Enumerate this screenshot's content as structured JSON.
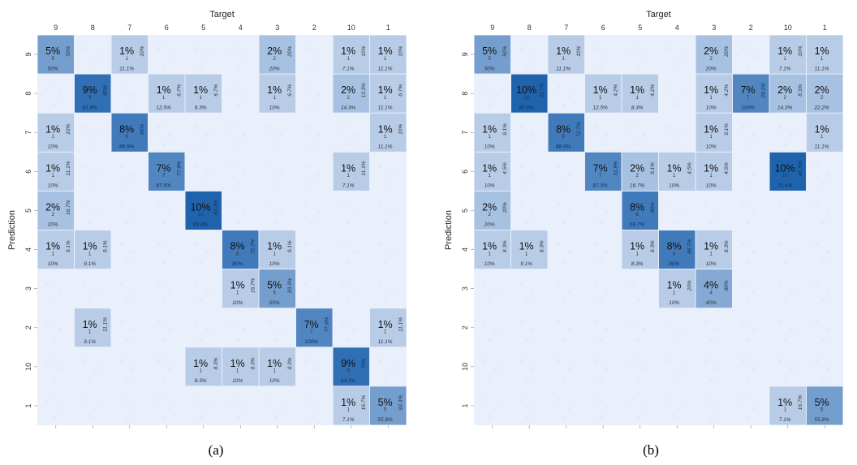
{
  "chart_data": [
    {
      "type": "heatmap",
      "caption": "(a)",
      "xlabel": "Target",
      "ylabel": "Prediction",
      "x_categories": [
        "9",
        "8",
        "7",
        "6",
        "5",
        "4",
        "3",
        "2",
        "10",
        "1"
      ],
      "y_categories": [
        "9",
        "8",
        "7",
        "6",
        "5",
        "4",
        "3",
        "2",
        "10",
        "1"
      ],
      "color_scale": {
        "low": "#e9effb",
        "high": "#1f63ad"
      },
      "cells": [
        {
          "prediction": "9",
          "target": "9",
          "percent": "5%",
          "count": "5",
          "col_pct": "50%",
          "row_pct": "50%"
        },
        {
          "prediction": "9",
          "target": "7",
          "percent": "1%",
          "count": "1",
          "col_pct": "11.1%",
          "row_pct": "10%"
        },
        {
          "prediction": "9",
          "target": "3",
          "percent": "2%",
          "count": "2",
          "col_pct": "20%",
          "row_pct": "20%"
        },
        {
          "prediction": "9",
          "target": "10",
          "percent": "1%",
          "count": "1",
          "col_pct": "7.1%",
          "row_pct": "10%"
        },
        {
          "prediction": "9",
          "target": "1",
          "percent": "1%",
          "count": "1",
          "col_pct": "11.1%",
          "row_pct": "10%"
        },
        {
          "prediction": "8",
          "target": "8",
          "percent": "9%",
          "count": "9",
          "col_pct": "81.8%",
          "row_pct": "60%"
        },
        {
          "prediction": "8",
          "target": "6",
          "percent": "1%",
          "count": "1",
          "col_pct": "12.5%",
          "row_pct": "6.7%"
        },
        {
          "prediction": "8",
          "target": "5",
          "percent": "1%",
          "count": "1",
          "col_pct": "8.3%",
          "row_pct": "6.7%"
        },
        {
          "prediction": "8",
          "target": "3",
          "percent": "1%",
          "count": "1",
          "col_pct": "10%",
          "row_pct": "6.7%"
        },
        {
          "prediction": "8",
          "target": "10",
          "percent": "2%",
          "count": "2",
          "col_pct": "14.3%",
          "row_pct": "13.3%"
        },
        {
          "prediction": "8",
          "target": "1",
          "percent": "1%",
          "count": "1",
          "col_pct": "11.1%",
          "row_pct": "6.7%"
        },
        {
          "prediction": "7",
          "target": "9",
          "percent": "1%",
          "count": "1",
          "col_pct": "10%",
          "row_pct": "10%"
        },
        {
          "prediction": "7",
          "target": "7",
          "percent": "8%",
          "count": "8",
          "col_pct": "88.9%",
          "row_pct": "80%"
        },
        {
          "prediction": "7",
          "target": "1",
          "percent": "1%",
          "count": "1",
          "col_pct": "11.1%",
          "row_pct": "10%"
        },
        {
          "prediction": "6",
          "target": "9",
          "percent": "1%",
          "count": "1",
          "col_pct": "10%",
          "row_pct": "11.1%"
        },
        {
          "prediction": "6",
          "target": "6",
          "percent": "7%",
          "count": "7",
          "col_pct": "87.5%",
          "row_pct": "77.8%"
        },
        {
          "prediction": "6",
          "target": "10",
          "percent": "1%",
          "count": "1",
          "col_pct": "7.1%",
          "row_pct": "11.1%"
        },
        {
          "prediction": "5",
          "target": "9",
          "percent": "2%",
          "count": "2",
          "col_pct": "20%",
          "row_pct": "16.7%"
        },
        {
          "prediction": "5",
          "target": "5",
          "percent": "10%",
          "count": "10",
          "col_pct": "83.3%",
          "row_pct": "83.3%"
        },
        {
          "prediction": "4",
          "target": "9",
          "percent": "1%",
          "count": "1",
          "col_pct": "10%",
          "row_pct": "9.1%"
        },
        {
          "prediction": "4",
          "target": "8",
          "percent": "1%",
          "count": "1",
          "col_pct": "9.1%",
          "row_pct": "9.1%"
        },
        {
          "prediction": "4",
          "target": "4",
          "percent": "8%",
          "count": "8",
          "col_pct": "80%",
          "row_pct": "72.7%"
        },
        {
          "prediction": "4",
          "target": "3",
          "percent": "1%",
          "count": "1",
          "col_pct": "10%",
          "row_pct": "9.1%"
        },
        {
          "prediction": "3",
          "target": "4",
          "percent": "1%",
          "count": "1",
          "col_pct": "10%",
          "row_pct": "16.7%"
        },
        {
          "prediction": "3",
          "target": "3",
          "percent": "5%",
          "count": "5",
          "col_pct": "50%",
          "row_pct": "83.3%"
        },
        {
          "prediction": "2",
          "target": "8",
          "percent": "1%",
          "count": "1",
          "col_pct": "9.1%",
          "row_pct": "11.1%"
        },
        {
          "prediction": "2",
          "target": "2",
          "percent": "7%",
          "count": "7",
          "col_pct": "100%",
          "row_pct": "77.8%"
        },
        {
          "prediction": "2",
          "target": "1",
          "percent": "1%",
          "count": "1",
          "col_pct": "11.1%",
          "row_pct": "11.1%"
        },
        {
          "prediction": "10",
          "target": "5",
          "percent": "1%",
          "count": "1",
          "col_pct": "8.3%",
          "row_pct": "8.3%"
        },
        {
          "prediction": "10",
          "target": "4",
          "percent": "1%",
          "count": "1",
          "col_pct": "10%",
          "row_pct": "8.3%"
        },
        {
          "prediction": "10",
          "target": "3",
          "percent": "1%",
          "count": "1",
          "col_pct": "10%",
          "row_pct": "8.3%"
        },
        {
          "prediction": "10",
          "target": "10",
          "percent": "9%",
          "count": "9",
          "col_pct": "64.3%",
          "row_pct": "75%"
        },
        {
          "prediction": "1",
          "target": "10",
          "percent": "1%",
          "count": "1",
          "col_pct": "7.1%",
          "row_pct": "16.7%"
        },
        {
          "prediction": "1",
          "target": "1",
          "percent": "5%",
          "count": "5",
          "col_pct": "55.6%",
          "row_pct": "83.3%"
        }
      ]
    },
    {
      "type": "heatmap",
      "caption": "(b)",
      "xlabel": "Target",
      "ylabel": "Prediction",
      "x_categories": [
        "9",
        "8",
        "7",
        "6",
        "5",
        "4",
        "3",
        "2",
        "10",
        "1"
      ],
      "y_categories": [
        "9",
        "8",
        "7",
        "6",
        "5",
        "4",
        "3",
        "2",
        "10",
        "1"
      ],
      "color_scale": {
        "low": "#e9effb",
        "high": "#1f63ad"
      },
      "cells": [
        {
          "prediction": "9",
          "target": "9",
          "percent": "5%",
          "count": "5",
          "col_pct": "50%",
          "row_pct": "50%"
        },
        {
          "prediction": "9",
          "target": "7",
          "percent": "1%",
          "count": "1",
          "col_pct": "11.1%",
          "row_pct": "10%"
        },
        {
          "prediction": "9",
          "target": "3",
          "percent": "2%",
          "count": "2",
          "col_pct": "20%",
          "row_pct": "20%"
        },
        {
          "prediction": "9",
          "target": "10",
          "percent": "1%",
          "count": "1",
          "col_pct": "7.1%",
          "row_pct": "10%"
        },
        {
          "prediction": "9",
          "target": "1",
          "percent": "1%",
          "count": "1",
          "col_pct": "11.1%",
          "row_pct": ""
        },
        {
          "prediction": "8",
          "target": "8",
          "percent": "10%",
          "count": "10",
          "col_pct": "90.9%",
          "row_pct": "41.7%"
        },
        {
          "prediction": "8",
          "target": "6",
          "percent": "1%",
          "count": "1",
          "col_pct": "12.5%",
          "row_pct": "4.2%"
        },
        {
          "prediction": "8",
          "target": "5",
          "percent": "1%",
          "count": "1",
          "col_pct": "8.3%",
          "row_pct": "4.2%"
        },
        {
          "prediction": "8",
          "target": "3",
          "percent": "1%",
          "count": "1",
          "col_pct": "10%",
          "row_pct": "4.2%"
        },
        {
          "prediction": "8",
          "target": "2",
          "percent": "7%",
          "count": "7",
          "col_pct": "100%",
          "row_pct": "29.2%"
        },
        {
          "prediction": "8",
          "target": "10",
          "percent": "2%",
          "count": "2",
          "col_pct": "14.3%",
          "row_pct": "8.3%"
        },
        {
          "prediction": "8",
          "target": "1",
          "percent": "2%",
          "count": "2",
          "col_pct": "22.2%",
          "row_pct": ""
        },
        {
          "prediction": "7",
          "target": "9",
          "percent": "1%",
          "count": "1",
          "col_pct": "10%",
          "row_pct": "9.1%"
        },
        {
          "prediction": "7",
          "target": "7",
          "percent": "8%",
          "count": "8",
          "col_pct": "88.9%",
          "row_pct": "72.7%"
        },
        {
          "prediction": "7",
          "target": "3",
          "percent": "1%",
          "count": "1",
          "col_pct": "10%",
          "row_pct": "9.1%"
        },
        {
          "prediction": "7",
          "target": "1",
          "percent": "1%",
          "count": "1",
          "col_pct": "11.1%",
          "row_pct": ""
        },
        {
          "prediction": "6",
          "target": "9",
          "percent": "1%",
          "count": "1",
          "col_pct": "10%",
          "row_pct": "4.5%"
        },
        {
          "prediction": "6",
          "target": "6",
          "percent": "7%",
          "count": "7",
          "col_pct": "87.5%",
          "row_pct": "31.8%"
        },
        {
          "prediction": "6",
          "target": "5",
          "percent": "2%",
          "count": "2",
          "col_pct": "16.7%",
          "row_pct": "9.1%"
        },
        {
          "prediction": "6",
          "target": "4",
          "percent": "1%",
          "count": "1",
          "col_pct": "10%",
          "row_pct": "4.5%"
        },
        {
          "prediction": "6",
          "target": "3",
          "percent": "1%",
          "count": "1",
          "col_pct": "10%",
          "row_pct": "4.5%"
        },
        {
          "prediction": "6",
          "target": "10",
          "percent": "10%",
          "count": "10",
          "col_pct": "71.4%",
          "row_pct": "45.5%"
        },
        {
          "prediction": "5",
          "target": "9",
          "percent": "2%",
          "count": "2",
          "col_pct": "20%",
          "row_pct": "20%"
        },
        {
          "prediction": "5",
          "target": "5",
          "percent": "8%",
          "count": "8",
          "col_pct": "66.7%",
          "row_pct": "80%"
        },
        {
          "prediction": "4",
          "target": "9",
          "percent": "1%",
          "count": "1",
          "col_pct": "10%",
          "row_pct": "8.3%"
        },
        {
          "prediction": "4",
          "target": "8",
          "percent": "1%",
          "count": "1",
          "col_pct": "9.1%",
          "row_pct": "8.3%"
        },
        {
          "prediction": "4",
          "target": "5",
          "percent": "1%",
          "count": "1",
          "col_pct": "8.3%",
          "row_pct": "8.3%"
        },
        {
          "prediction": "4",
          "target": "4",
          "percent": "8%",
          "count": "8",
          "col_pct": "80%",
          "row_pct": "66.7%"
        },
        {
          "prediction": "4",
          "target": "3",
          "percent": "1%",
          "count": "1",
          "col_pct": "10%",
          "row_pct": "8.3%"
        },
        {
          "prediction": "3",
          "target": "4",
          "percent": "1%",
          "count": "1",
          "col_pct": "10%",
          "row_pct": "20%"
        },
        {
          "prediction": "3",
          "target": "3",
          "percent": "4%",
          "count": "4",
          "col_pct": "40%",
          "row_pct": "80%"
        },
        {
          "prediction": "1",
          "target": "10",
          "percent": "1%",
          "count": "1",
          "col_pct": "7.1%",
          "row_pct": "16.7%"
        },
        {
          "prediction": "1",
          "target": "1",
          "percent": "5%",
          "count": "5",
          "col_pct": "55.6%",
          "row_pct": ""
        }
      ]
    }
  ]
}
